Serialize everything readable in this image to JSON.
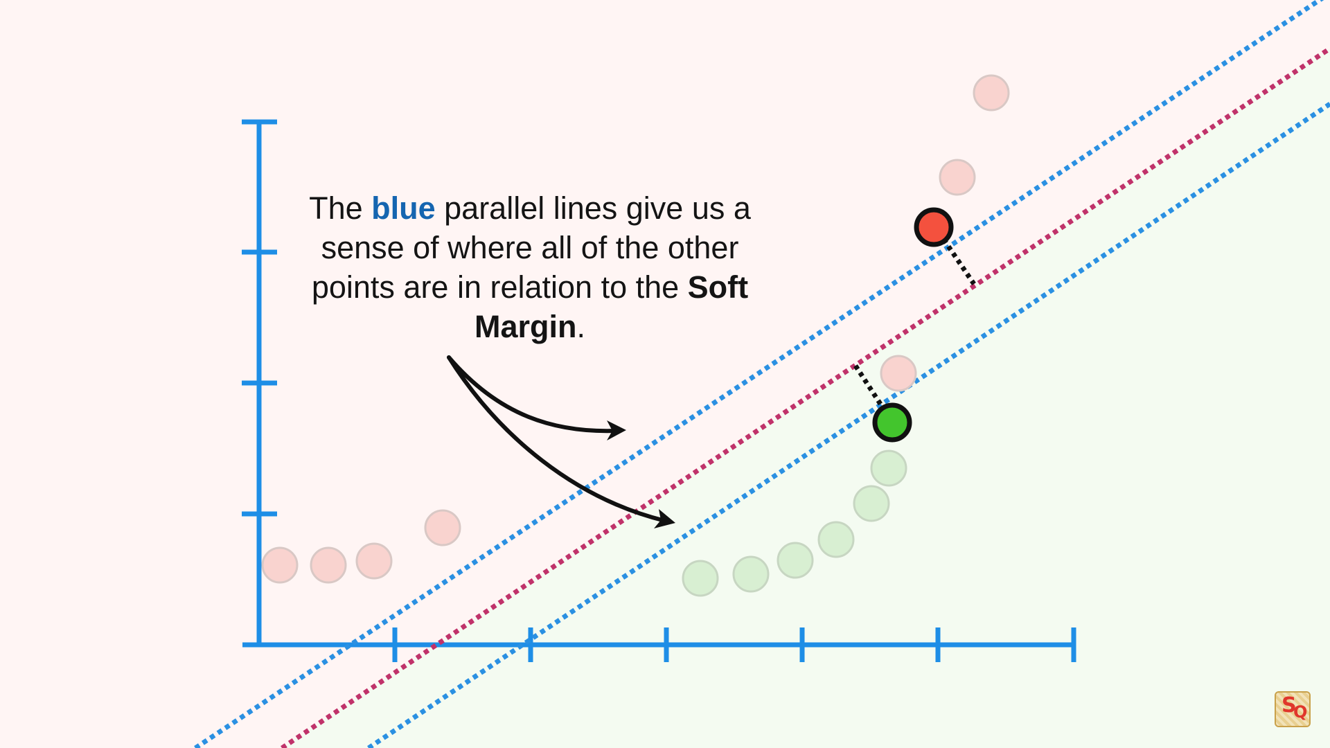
{
  "caption": {
    "part1": "The ",
    "blue_word": "blue",
    "part2": " parallel lines give us a sense of where all of the other points are in relation to the ",
    "bold_term": "Soft Margin",
    "part3": "."
  },
  "colors": {
    "axis": "#1e8ee6",
    "blue_line": "#2a90e2",
    "margin_line": "#c0326a",
    "red_region": "#fff5f4",
    "green_region": "#f4fbf1",
    "faded_red": "#f9d3cf",
    "faded_green": "#d8efd2",
    "highlight_red": "#f4513e",
    "highlight_green": "#43c52d",
    "arrow": "#111111"
  },
  "icons": {
    "logo": "statquest-logo-icon"
  }
}
